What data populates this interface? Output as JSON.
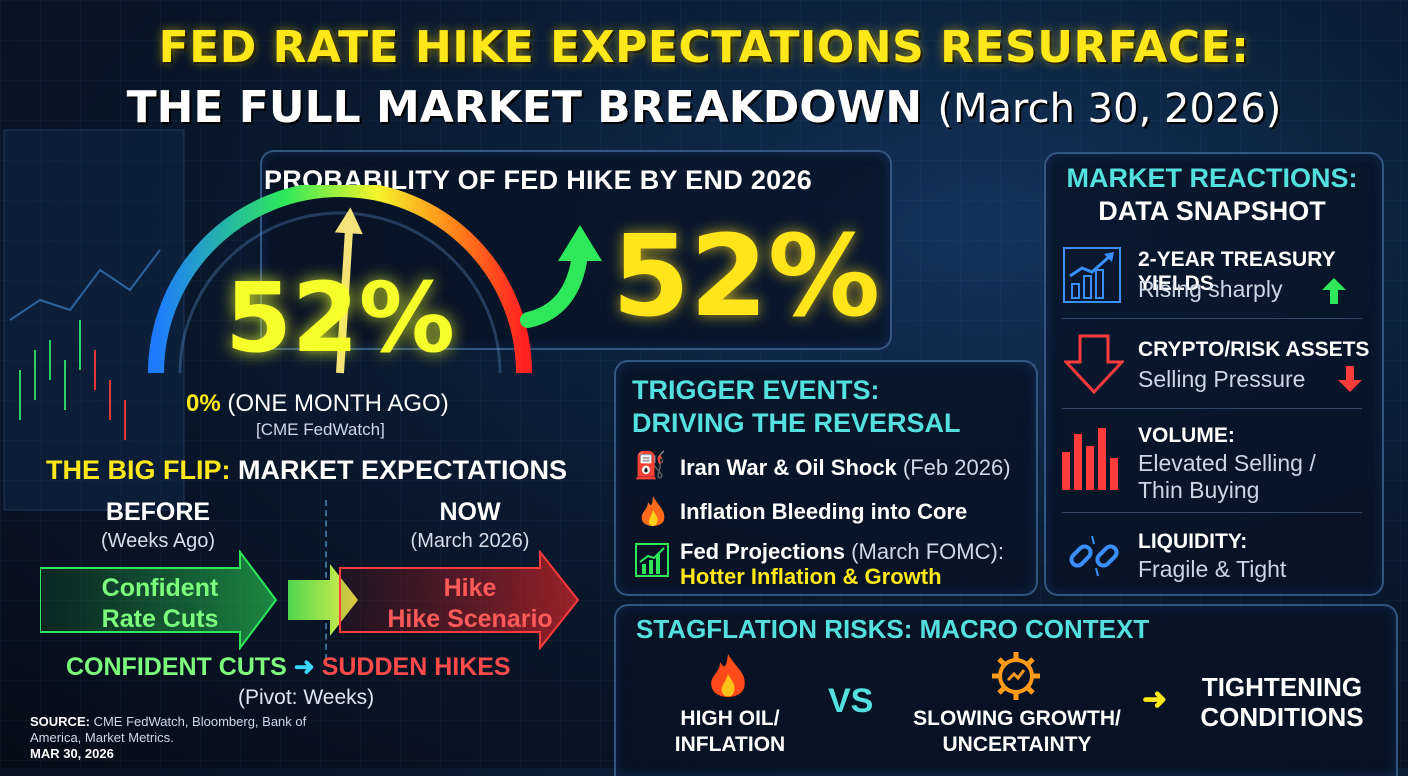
{
  "title": {
    "line1": "FED RATE HIKE EXPECTATIONS RESURFACE:",
    "line2": "THE FULL MARKET BREAKDOWN",
    "date": "(March 30, 2026)"
  },
  "probability": {
    "heading": "PROBABILITY OF FED HIKE BY END 2026",
    "gauge_value": "52%",
    "big_value": "52%",
    "gauge_fraction": 0.52,
    "ago_value": "0%",
    "ago_label": "(ONE MONTH AGO)",
    "source": "[CME FedWatch]"
  },
  "flip": {
    "heading_highlight": "THE BIG FLIP:",
    "heading_rest": "MARKET EXPECTATIONS",
    "before_label": "BEFORE",
    "before_sub": "(Weeks Ago)",
    "now_label": "NOW",
    "now_sub": "(March 2026)",
    "before_arrow_line1": "Confident",
    "before_arrow_line2": "Rate Cuts",
    "now_arrow_line1": "Hike",
    "now_arrow_line2": "Hike Scenario",
    "cuts_label": "CONFIDENT CUTS",
    "hikes_label": "SUDDEN HIKES",
    "pivot": "(Pivot: Weeks)"
  },
  "source_note": {
    "label": "SOURCE:",
    "text": "CME FedWatch, Bloomberg, Bank of America, Market Metrics.",
    "date": "MAR 30, 2026"
  },
  "market_reactions": {
    "title_line1": "MARKET REACTIONS:",
    "title_line2": "DATA SNAPSHOT",
    "items": [
      {
        "label": "2-YEAR TREASURY YIELDS",
        "sub": "Rising sharply",
        "icon": "line-chart-up-icon"
      },
      {
        "label": "CRYPTO/RISK ASSETS",
        "sub": "Selling Pressure",
        "icon": "down-arrow-icon"
      },
      {
        "label": "VOLUME:",
        "sub": "Elevated Selling / Thin Buying",
        "sub_line1": "Elevated Selling /",
        "sub_line2": "Thin Buying",
        "icon": "bar-chart-icon"
      },
      {
        "label": "LIQUIDITY:",
        "sub": "Fragile & Tight",
        "icon": "broken-chain-icon"
      }
    ]
  },
  "triggers": {
    "title_line1": "TRIGGER EVENTS:",
    "title_line2": "DRIVING THE REVERSAL",
    "items": [
      {
        "main": "Iran War & Oil Shock",
        "light": "(Feb 2026)",
        "icon": "oil-rig-icon"
      },
      {
        "main": "Inflation Bleeding into Core",
        "light": "",
        "icon": "fire-icon"
      },
      {
        "main": "Fed Projections",
        "light": "(March FOMC):",
        "highlight": "Hotter Inflation & Growth",
        "icon": "growth-chart-icon"
      }
    ]
  },
  "stagflation": {
    "title": "STAGFLATION RISKS: MACRO CONTEXT",
    "left_line1": "HIGH OIL/",
    "left_line2": "INFLATION",
    "vs": "VS",
    "mid_line1": "SLOWING GROWTH/",
    "mid_line2": "UNCERTAINTY",
    "right_line1": "TIGHTENING",
    "right_line2": "CONDITIONS"
  },
  "colors": {
    "yellow": "#ffe81a",
    "cyan": "#55e0e0",
    "green": "#2ee85a",
    "red": "#ff3b3b"
  }
}
